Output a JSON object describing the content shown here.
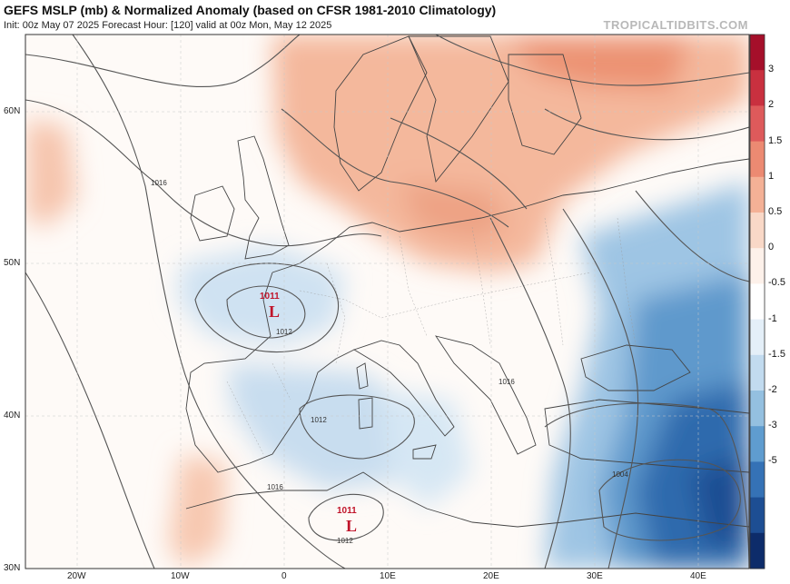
{
  "header": {
    "title": "GEFS MSLP (mb) & Normalized Anomaly (based on CFSR 1981-2010 Climatology)",
    "subtitle": "Init: 00z May 07 2025   Forecast Hour: [120]   valid at 00z Mon, May 12 2025",
    "watermark": "TROPICALTIDBITS.COM"
  },
  "axes": {
    "lat_labels": [
      "60N",
      "50N",
      "40N",
      "30N"
    ],
    "lon_labels": [
      "20W",
      "10W",
      "0",
      "10E",
      "20E",
      "30E",
      "40E"
    ]
  },
  "colorbar": {
    "labels": [
      "3",
      "2",
      "1.5",
      "1",
      "0.5",
      "0",
      "-0.5",
      "-1",
      "-1.5",
      "-2",
      "-3",
      "-5"
    ],
    "colors": [
      "#a50f2a",
      "#c9303f",
      "#de5a5b",
      "#ec8a72",
      "#f4b196",
      "#f9d8c7",
      "#fdf1ea",
      "#ffffff",
      "#e4eff8",
      "#c2dbef",
      "#94c0e0",
      "#5f9ccf",
      "#3572b6",
      "#1d4e93",
      "#0d2c6a"
    ]
  },
  "lows": [
    {
      "value": "1011",
      "letter": "L"
    },
    {
      "value": "1011",
      "letter": "L"
    }
  ],
  "isobar_labels": [
    "1016",
    "1012",
    "1012",
    "1016",
    "1012",
    "1016",
    "1004"
  ]
}
